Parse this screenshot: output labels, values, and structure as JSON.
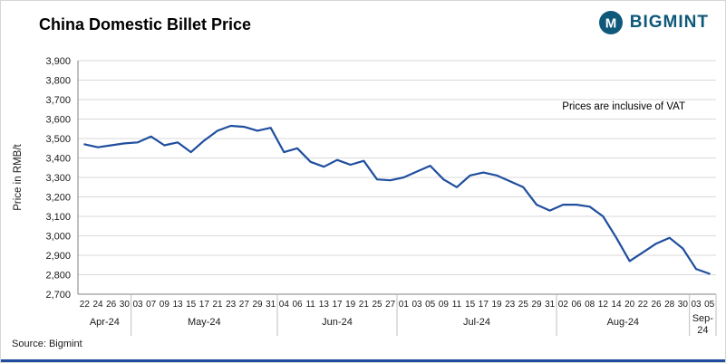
{
  "header": {
    "title": "China Domestic Billet Price",
    "logo_text": "BIGMINT",
    "logo_color": "#0e587a"
  },
  "source": "Source: Bigmint",
  "chart_data": {
    "type": "line",
    "title": "China Domestic Billet Price",
    "ylabel": "Price in RMB/t",
    "ylim": [
      2700,
      3900
    ],
    "ytick_step": 100,
    "grid": "horizontal",
    "annotation": "Prices are inclusive of VAT",
    "annotation_value_y": 3650,
    "line_color": "#1f4e9e",
    "months": [
      {
        "label": "Apr-24",
        "days": [
          "22",
          "24",
          "26",
          "30"
        ],
        "values": [
          3470,
          3455,
          3465,
          3475
        ]
      },
      {
        "label": "May-24",
        "days": [
          "03",
          "07",
          "09",
          "13",
          "15",
          "17",
          "21",
          "23",
          "27",
          "29",
          "31"
        ],
        "values": [
          3480,
          3510,
          3465,
          3480,
          3430,
          3490,
          3540,
          3565,
          3560,
          3540,
          3555
        ]
      },
      {
        "label": "Jun-24",
        "days": [
          "04",
          "06",
          "11",
          "13",
          "17",
          "19",
          "21",
          "25",
          "27"
        ],
        "values": [
          3430,
          3450,
          3380,
          3355,
          3390,
          3365,
          3385,
          3290,
          3285
        ]
      },
      {
        "label": "Jul-24",
        "days": [
          "01",
          "03",
          "05",
          "09",
          "11",
          "15",
          "17",
          "19",
          "23",
          "25",
          "29",
          "31"
        ],
        "values": [
          3300,
          3330,
          3360,
          3290,
          3250,
          3310,
          3325,
          3310,
          3280,
          3250,
          3160,
          3130
        ]
      },
      {
        "label": "Aug-24",
        "days": [
          "02",
          "06",
          "08",
          "12",
          "14",
          "20",
          "22",
          "26",
          "28",
          "30"
        ],
        "values": [
          3160,
          3160,
          3150,
          3100,
          2990,
          2870,
          2915,
          2960,
          2990,
          2935
        ]
      },
      {
        "label": "Sep-24",
        "days": [
          "03",
          "05"
        ],
        "values": [
          2830,
          2805
        ]
      }
    ]
  }
}
